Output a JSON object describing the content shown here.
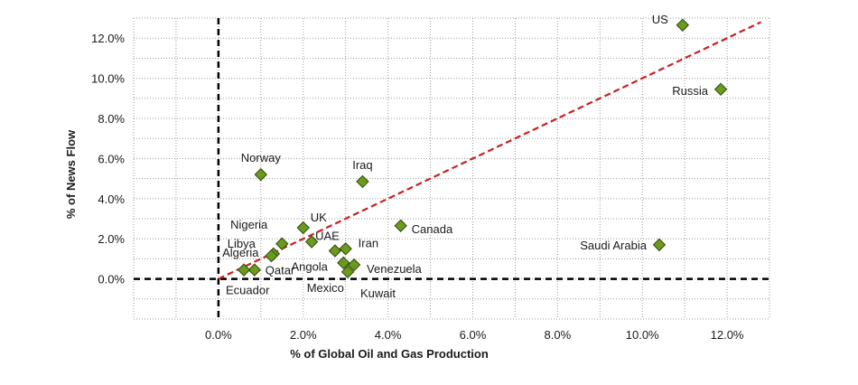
{
  "chart_data": {
    "type": "scatter",
    "title": "",
    "xlabel": "% of Global Oil and Gas Production",
    "ylabel": "% of News Flow",
    "xlim": [
      -2.0,
      13.0
    ],
    "ylim": [
      -2.0,
      13.0
    ],
    "x_ticks": [
      "0.0%",
      "2.0%",
      "4.0%",
      "6.0%",
      "8.0%",
      "10.0%",
      "12.0%"
    ],
    "x_tick_values": [
      0,
      2,
      4,
      6,
      8,
      10,
      12
    ],
    "y_ticks": [
      "0.0%",
      "2.0%",
      "4.0%",
      "6.0%",
      "8.0%",
      "10.0%",
      "12.0%"
    ],
    "y_tick_values": [
      0,
      2,
      4,
      6,
      8,
      10,
      12
    ],
    "grid": true,
    "marker_color": "#6b9a1f",
    "marker_edge": "#2f4a0a",
    "trendline": {
      "style": "dashed",
      "color": "#cc1f1f",
      "x": [
        0.0,
        12.8
      ],
      "y": [
        0.0,
        12.8
      ]
    },
    "reference_lines": {
      "style": "dashed",
      "color": "#000000",
      "x": 0,
      "y": 0
    },
    "points": [
      {
        "label": "US",
        "x": 10.95,
        "y": 12.65
      },
      {
        "label": "Russia",
        "x": 11.85,
        "y": 9.45
      },
      {
        "label": "Saudi Arabia",
        "x": 10.4,
        "y": 1.7
      },
      {
        "label": "Norway",
        "x": 1.0,
        "y": 5.2
      },
      {
        "label": "Iraq",
        "x": 3.4,
        "y": 4.85
      },
      {
        "label": "Canada",
        "x": 4.3,
        "y": 2.65
      },
      {
        "label": "UK",
        "x": 2.0,
        "y": 2.55
      },
      {
        "label": "Nigeria",
        "x": 1.5,
        "y": 1.75
      },
      {
        "label": "UAE",
        "x": 2.2,
        "y": 1.85
      },
      {
        "label": "Libya",
        "x": 1.3,
        "y": 1.25
      },
      {
        "label": "Algeria",
        "x": 1.25,
        "y": 1.15
      },
      {
        "label": "Iran",
        "x": 3.0,
        "y": 1.5
      },
      {
        "label": "Angola",
        "x": 2.75,
        "y": 1.4
      },
      {
        "label": "Venezuela",
        "x": 3.2,
        "y": 0.7
      },
      {
        "label": "Mexico",
        "x": 2.95,
        "y": 0.8
      },
      {
        "label": "Kuwait",
        "x": 3.05,
        "y": 0.35
      },
      {
        "label": "Qatar",
        "x": 0.85,
        "y": 0.45
      },
      {
        "label": "Ecuador",
        "x": 0.6,
        "y": 0.45
      }
    ]
  }
}
